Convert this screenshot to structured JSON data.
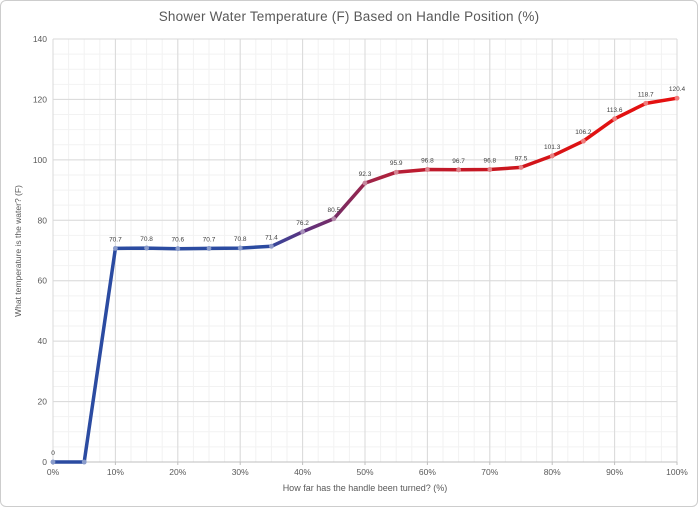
{
  "chart_data": {
    "type": "line",
    "title": "Shower Water Temperature (F) Based on Handle Position (%)",
    "xlabel": "How far has the handle been turned? (%)",
    "ylabel": "What temperature is the water? (F)",
    "x_percent": [
      0,
      5,
      10,
      15,
      20,
      25,
      30,
      35,
      40,
      45,
      50,
      55,
      60,
      65,
      70,
      75,
      80,
      85,
      90,
      95,
      100
    ],
    "values": [
      0,
      0,
      70.7,
      70.8,
      70.6,
      70.7,
      70.8,
      71.4,
      76.2,
      80.5,
      92.3,
      95.9,
      96.8,
      96.7,
      96.8,
      97.5,
      101.3,
      106.2,
      113.6,
      118.7,
      120.4
    ],
    "point_labels": [
      "0",
      "",
      "70.7",
      "70.8",
      "70.6",
      "70.7",
      "70.8",
      "71.4",
      "76.2",
      "80.5",
      "92.3",
      "95.9",
      "96.8",
      "96.7",
      "96.8",
      "97.5",
      "101.3",
      "106.2",
      "113.6",
      "118.7",
      "120.4"
    ],
    "x_tick_labels": [
      "0%",
      "10%",
      "20%",
      "30%",
      "40%",
      "50%",
      "60%",
      "70%",
      "80%",
      "90%",
      "100%"
    ],
    "y_ticks": [
      0,
      20,
      40,
      60,
      80,
      100,
      120,
      140
    ],
    "xlim": [
      0,
      100
    ],
    "ylim": [
      0,
      140
    ],
    "grid": {
      "major_color": "#d9d9d9",
      "minor_color": "#f2f2f2",
      "minor_x_step": 2.5,
      "minor_y_step": 5,
      "major_x_step": 10,
      "major_y_step": 20
    },
    "axis_color": "#bfbfbf",
    "tick_text_color": "#595959",
    "data_label_color": "#404040",
    "line_gradient": [
      {
        "offset": 0.0,
        "color": "#2b4ba1"
      },
      {
        "offset": 0.34,
        "color": "#2b4ba1"
      },
      {
        "offset": 0.4,
        "color": "#5d3380"
      },
      {
        "offset": 0.46,
        "color": "#7c2a60"
      },
      {
        "offset": 0.52,
        "color": "#a62343"
      },
      {
        "offset": 0.58,
        "color": "#bd1b2f"
      },
      {
        "offset": 0.72,
        "color": "#c9161f"
      },
      {
        "offset": 0.85,
        "color": "#df1212"
      },
      {
        "offset": 1.0,
        "color": "#e51010"
      }
    ],
    "legend": "none",
    "grid_on": true
  }
}
